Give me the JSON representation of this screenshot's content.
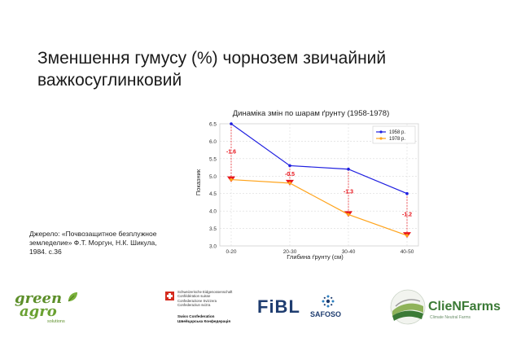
{
  "slide": {
    "title": "Зменшення гумусу (%) чорнозем звичайний важкосуглинковий",
    "source": "Джерело: «Почвозащитное безплужное земледелие» Ф.Т. Моргун, Н.К. Шикула, 1984. с.36"
  },
  "chart_data": {
    "type": "line",
    "title": "Динаміка змін по шарам ґрунту (1958-1978)",
    "xlabel": "Глибина ґрунту (см)",
    "ylabel": "Показник",
    "categories": [
      "0-20",
      "20-30",
      "30-40",
      "40-50"
    ],
    "ylim": [
      3.0,
      6.5
    ],
    "yticks": [
      "3.0",
      "3.5",
      "4.0",
      "4.5",
      "5.0",
      "5.5",
      "6.0",
      "6.5"
    ],
    "grid": true,
    "legend": "top-right",
    "series": [
      {
        "name": "1958 р.",
        "values": [
          6.5,
          5.3,
          5.2,
          4.5
        ],
        "color": "#1f1fe0"
      },
      {
        "name": "1978 р.",
        "values": [
          4.9,
          4.8,
          3.9,
          3.3
        ],
        "color": "#ffa31a"
      }
    ],
    "annotations": [
      "-1.6",
      "-0.5",
      "-1.3",
      "-1.2"
    ],
    "annotation_color": "#e8141c"
  },
  "logos": {
    "greenagro": {
      "line1": "green",
      "line2": "agro",
      "tagline": "solutions"
    },
    "swiss": {
      "lines": [
        "Schweizerische Eidgenossenschaft",
        "Confédération suisse",
        "Confederazione Svizzera",
        "Confederaziun svizra"
      ],
      "confederation": [
        "Swiss Confederation",
        "Швейцарська Конфедерація"
      ]
    },
    "fibl": "FiBL",
    "safoso": "SAFOSO",
    "clienfarms": {
      "name": "ClieNFarms",
      "tagline": "Climate Neutral Farms"
    }
  }
}
